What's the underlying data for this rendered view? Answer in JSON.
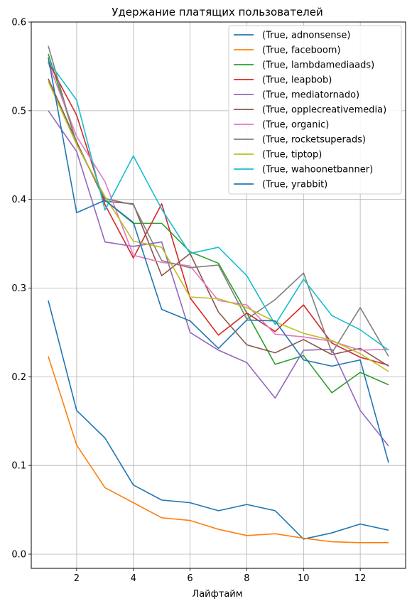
{
  "chart_data": {
    "type": "line",
    "title": "Удержание платящих пользователей",
    "xlabel": "Лайфтайм",
    "ylabel": "",
    "xlim": [
      0.4,
      13.6
    ],
    "ylim": [
      -0.016,
      0.6
    ],
    "xticks": [
      2,
      4,
      6,
      8,
      10,
      12
    ],
    "yticks": [
      0.0,
      0.1,
      0.2,
      0.3,
      0.4,
      0.5,
      0.6
    ],
    "grid": true,
    "legend_position": "top-right",
    "x": [
      1,
      2,
      3,
      4,
      5,
      6,
      7,
      8,
      9,
      10,
      11,
      12,
      13
    ],
    "series": [
      {
        "name": "(True, adnonsense)",
        "color": "#1f77b4",
        "values": [
          0.286,
          0.162,
          0.131,
          0.078,
          0.061,
          0.058,
          0.049,
          0.056,
          0.049,
          0.017,
          0.024,
          0.034,
          0.027
        ]
      },
      {
        "name": "(True, faceboom)",
        "color": "#ff7f0e",
        "values": [
          0.223,
          0.123,
          0.075,
          0.058,
          0.041,
          0.038,
          0.028,
          0.021,
          0.023,
          0.018,
          0.014,
          0.013,
          0.013
        ]
      },
      {
        "name": "(True, lambdamediaads)",
        "color": "#2ca02c",
        "values": [
          0.564,
          0.464,
          0.399,
          0.373,
          0.373,
          0.341,
          0.328,
          0.272,
          0.214,
          0.224,
          0.182,
          0.205,
          0.191
        ]
      },
      {
        "name": "(True, leapbob)",
        "color": "#d62728",
        "values": [
          0.555,
          0.495,
          0.394,
          0.334,
          0.395,
          0.289,
          0.247,
          0.272,
          0.251,
          0.281,
          0.238,
          0.222,
          0.213
        ]
      },
      {
        "name": "(True, mediatornado)",
        "color": "#9467bd",
        "values": [
          0.5,
          0.454,
          0.352,
          0.347,
          0.352,
          0.25,
          0.23,
          0.216,
          0.176,
          0.23,
          0.231,
          0.162,
          0.122
        ]
      },
      {
        "name": "(True, opplecreativemedia)",
        "color": "#8c564b",
        "values": [
          0.536,
          0.465,
          0.398,
          0.395,
          0.314,
          0.339,
          0.273,
          0.236,
          0.227,
          0.242,
          0.225,
          0.232,
          0.212
        ]
      },
      {
        "name": "(True, organic)",
        "color": "#e377c2",
        "values": [
          0.554,
          0.471,
          0.42,
          0.337,
          0.329,
          0.325,
          0.286,
          0.281,
          0.248,
          0.245,
          0.24,
          0.23,
          0.231
        ]
      },
      {
        "name": "(True, rocketsuperads)",
        "color": "#7f7f7f",
        "values": [
          0.573,
          0.462,
          0.401,
          0.394,
          0.331,
          0.323,
          0.326,
          0.265,
          0.287,
          0.317,
          0.227,
          0.278,
          0.223
        ]
      },
      {
        "name": "(True, tiptop)",
        "color": "#bcbd22",
        "values": [
          0.533,
          0.462,
          0.403,
          0.353,
          0.346,
          0.29,
          0.288,
          0.278,
          0.262,
          0.249,
          0.241,
          0.226,
          0.206
        ]
      },
      {
        "name": "(True, wahoonetbanner)",
        "color": "#17becf",
        "values": [
          0.556,
          0.512,
          0.388,
          0.449,
          0.389,
          0.339,
          0.346,
          0.314,
          0.259,
          0.31,
          0.269,
          0.253,
          0.23
        ]
      },
      {
        "name": "(True, yrabbit)",
        "color": "#1f77b4",
        "values": [
          0.56,
          0.385,
          0.399,
          0.374,
          0.276,
          0.263,
          0.232,
          0.264,
          0.263,
          0.219,
          0.212,
          0.219,
          0.103
        ]
      }
    ]
  }
}
